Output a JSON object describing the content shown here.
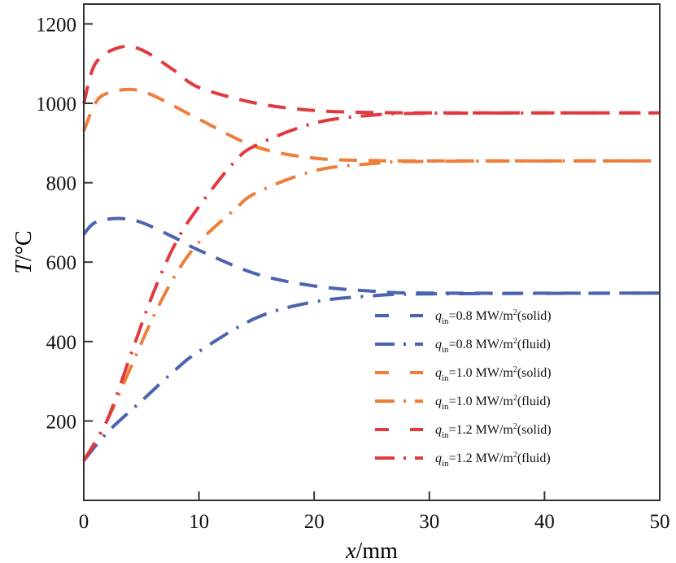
{
  "chart_data": {
    "type": "line",
    "title": "",
    "xlabel_italic": "x",
    "xlabel_unit": "/mm",
    "ylabel_italic": "T",
    "ylabel_unit": "/°C",
    "xlim": [
      0,
      50
    ],
    "ylim": [
      0,
      1250
    ],
    "xticks": [
      0,
      10,
      20,
      30,
      40,
      50
    ],
    "yticks": [
      200,
      400,
      600,
      800,
      1000,
      1200
    ],
    "grid": false,
    "legend_placement": "lower-right",
    "series": [
      {
        "name_sym": "q",
        "name_sub": "in",
        "name_rest": "=0.8 MW/m",
        "name_sup": "2",
        "name_tail": "(solid)",
        "color": "#4a64b0",
        "style": "dashed",
        "x": [
          0,
          1,
          3,
          5,
          8,
          10,
          15,
          20,
          25,
          30,
          50
        ],
        "y": [
          670,
          700,
          710,
          700,
          660,
          630,
          570,
          540,
          527,
          522,
          522
        ]
      },
      {
        "name_sym": "q",
        "name_sub": "in",
        "name_rest": "=0.8 MW/m",
        "name_sup": "2",
        "name_tail": "(fluid)",
        "color": "#4a64b0",
        "style": "dashdot",
        "x": [
          0,
          2,
          5,
          8,
          10,
          15,
          20,
          25,
          30,
          50
        ],
        "y": [
          100,
          170,
          250,
          330,
          375,
          460,
          500,
          515,
          520,
          522
        ]
      },
      {
        "name_sym": "q",
        "name_sub": "in",
        "name_rest": "=1.0 MW/m",
        "name_sup": "2",
        "name_tail": "(solid)",
        "color": "#ee7e3a",
        "style": "dashed",
        "x": [
          0,
          1,
          2,
          4,
          6,
          10,
          15,
          20,
          25,
          30,
          50
        ],
        "y": [
          930,
          1000,
          1025,
          1035,
          1020,
          960,
          890,
          862,
          856,
          855,
          855
        ]
      },
      {
        "name_sym": "q",
        "name_sub": "in",
        "name_rest": "=1.0 MW/m",
        "name_sup": "2",
        "name_tail": "(fluid)",
        "color": "#ee7e3a",
        "style": "dashdot",
        "x": [
          0,
          2,
          4,
          6,
          8,
          10,
          13,
          15,
          20,
          25,
          30,
          50
        ],
        "y": [
          100,
          200,
          330,
          460,
          570,
          650,
          730,
          775,
          830,
          848,
          854,
          855
        ]
      },
      {
        "name_sym": "q",
        "name_sub": "in",
        "name_rest": "=1.2 MW/m",
        "name_sup": "2",
        "name_tail": "(solid)",
        "color": "#e03a3e",
        "style": "dashed",
        "x": [
          0,
          1,
          3,
          5,
          8,
          10,
          15,
          20,
          25,
          30,
          50
        ],
        "y": [
          1000,
          1100,
          1140,
          1135,
          1080,
          1040,
          1000,
          982,
          977,
          976,
          976
        ]
      },
      {
        "name_sym": "q",
        "name_sub": "in",
        "name_rest": "=1.2 MW/m",
        "name_sup": "2",
        "name_tail": "(fluid)",
        "color": "#e03a3e",
        "style": "dashdot",
        "x": [
          0,
          2,
          4,
          6,
          8,
          10,
          13,
          15,
          20,
          25,
          30,
          50
        ],
        "y": [
          100,
          200,
          360,
          520,
          650,
          740,
          850,
          895,
          950,
          970,
          975,
          976
        ]
      }
    ]
  }
}
